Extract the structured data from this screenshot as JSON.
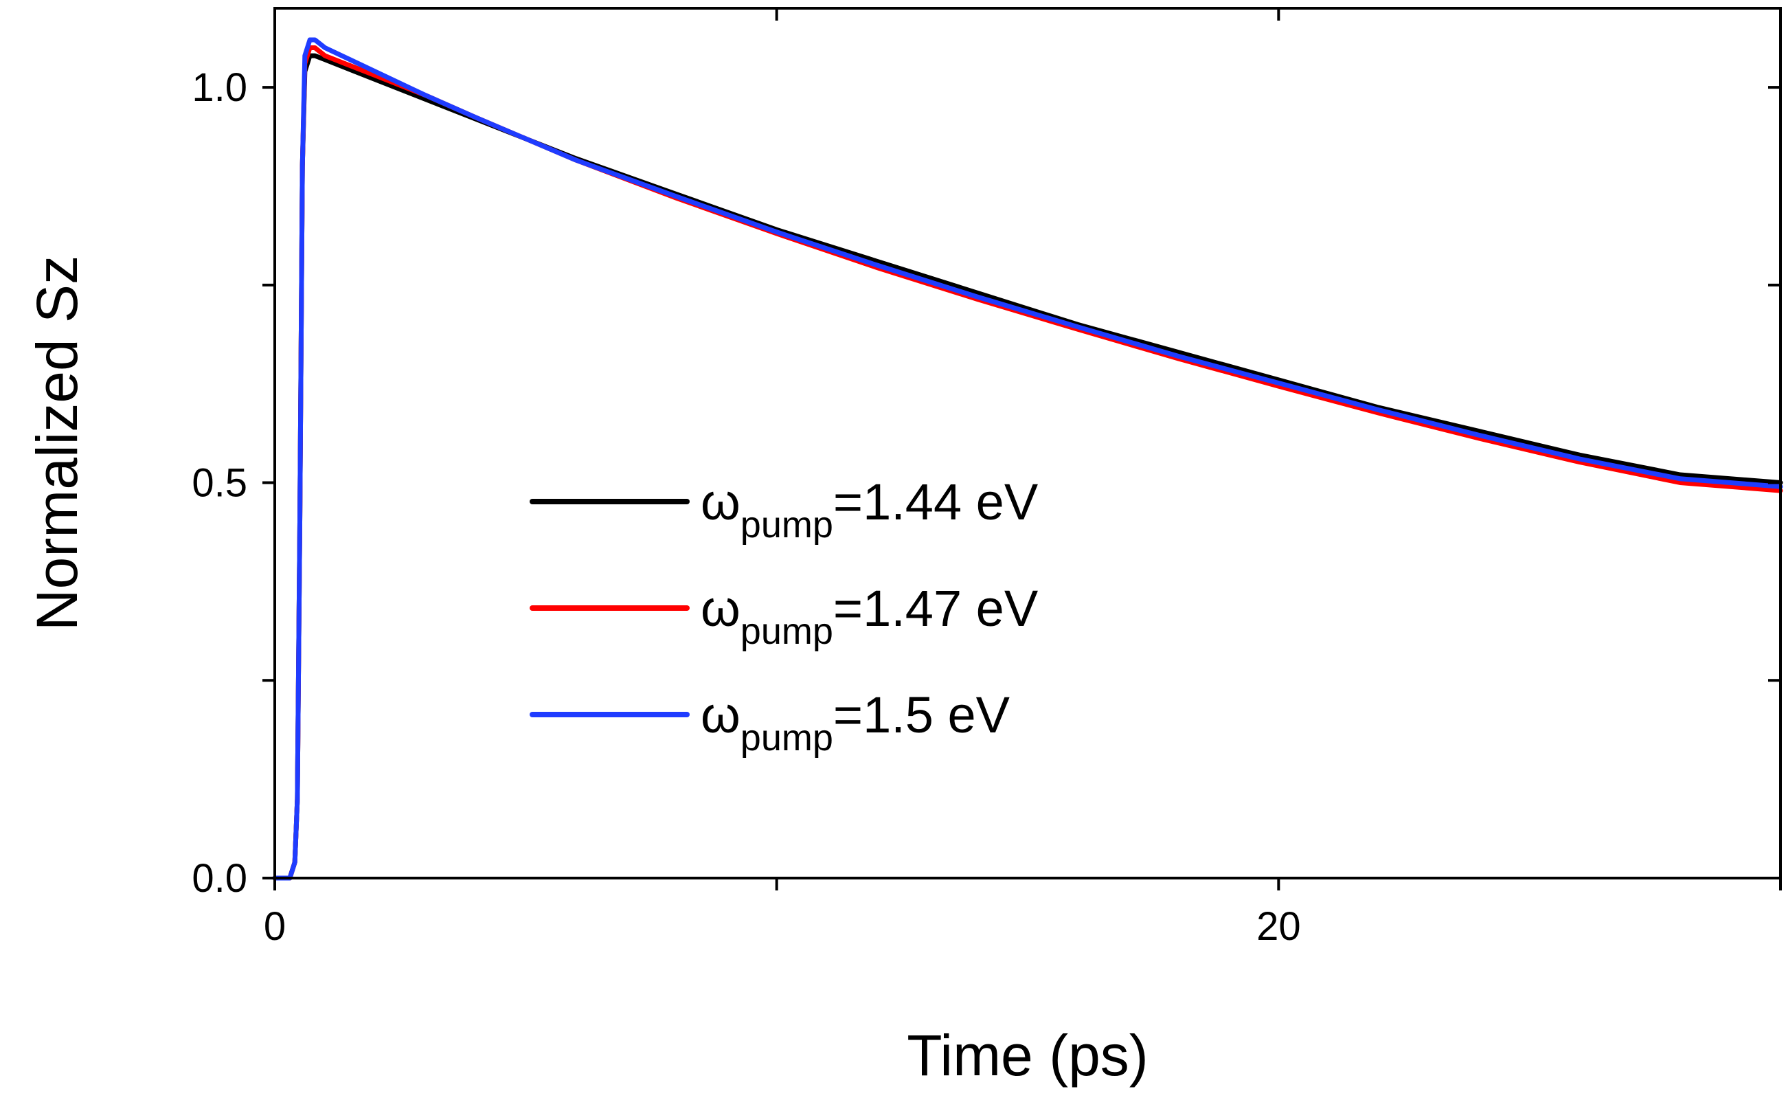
{
  "chart_data": {
    "type": "line",
    "title": "",
    "xlabel": "Time (ps)",
    "ylabel": "Normalized Sz",
    "xlim": [
      0,
      30
    ],
    "ylim": [
      0,
      1.1
    ],
    "x_major_ticks": [
      0,
      10,
      20,
      30
    ],
    "x_tick_labels": [
      "0",
      "",
      "20",
      ""
    ],
    "y_major_ticks": [
      0.0,
      0.25,
      0.5,
      0.75,
      1.0
    ],
    "y_tick_labels": [
      "0.0",
      "",
      "0.5",
      "",
      "1.0"
    ],
    "grid": false,
    "legend_position": "center",
    "series": [
      {
        "name": "ωpump=1.44 eV",
        "legend_main": "ω",
        "legend_sub": "pump",
        "legend_rest": "=1.44 eV",
        "color": "#000000",
        "x": [
          0,
          0.3,
          0.4,
          0.45,
          0.5,
          0.55,
          0.6,
          0.7,
          0.8,
          1.0,
          2,
          3,
          4,
          6,
          8,
          10,
          12,
          14,
          16,
          18,
          20,
          22,
          24,
          26,
          28,
          30
        ],
        "y": [
          0,
          0,
          0.02,
          0.1,
          0.45,
          0.9,
          1.02,
          1.04,
          1.04,
          1.035,
          1.01,
          0.985,
          0.96,
          0.91,
          0.865,
          0.82,
          0.78,
          0.74,
          0.7,
          0.665,
          0.63,
          0.595,
          0.565,
          0.535,
          0.51,
          0.5
        ]
      },
      {
        "name": "ωpump=1.47 eV",
        "legend_main": "ω",
        "legend_sub": "pump",
        "legend_rest": "=1.47 eV",
        "color": "#ff0000",
        "x": [
          0,
          0.3,
          0.4,
          0.45,
          0.5,
          0.55,
          0.6,
          0.7,
          0.8,
          1.0,
          2,
          3,
          4,
          6,
          8,
          10,
          12,
          14,
          16,
          18,
          20,
          22,
          24,
          26,
          28,
          30
        ],
        "y": [
          0,
          0,
          0.02,
          0.1,
          0.45,
          0.9,
          1.03,
          1.05,
          1.05,
          1.04,
          1.015,
          0.99,
          0.962,
          0.908,
          0.86,
          0.815,
          0.772,
          0.732,
          0.694,
          0.657,
          0.622,
          0.588,
          0.556,
          0.526,
          0.5,
          0.49
        ]
      },
      {
        "name": "ωpump=1.5 eV",
        "legend_main": "ω",
        "legend_sub": "pump",
        "legend_rest": "=1.5 eV",
        "color": "#1f3cff",
        "x": [
          0,
          0.3,
          0.4,
          0.45,
          0.5,
          0.55,
          0.6,
          0.7,
          0.8,
          1.0,
          2,
          3,
          4,
          6,
          8,
          10,
          12,
          14,
          16,
          18,
          20,
          22,
          24,
          26,
          28,
          30
        ],
        "y": [
          0,
          0,
          0.02,
          0.1,
          0.45,
          0.9,
          1.04,
          1.06,
          1.06,
          1.05,
          1.02,
          0.99,
          0.962,
          0.908,
          0.862,
          0.817,
          0.775,
          0.735,
          0.697,
          0.66,
          0.626,
          0.592,
          0.56,
          0.53,
          0.505,
          0.495
        ]
      }
    ]
  }
}
